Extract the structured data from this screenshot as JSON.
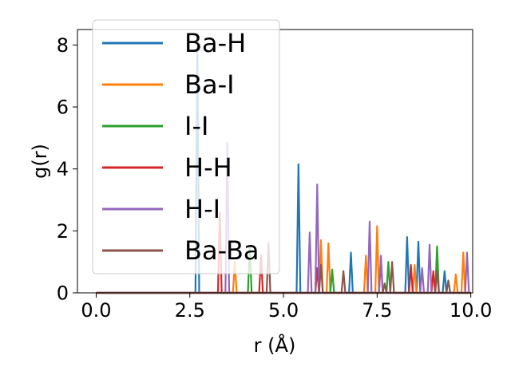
{
  "chart_data": {
    "type": "line",
    "xlabel": "r (Å)",
    "ylabel": "g(r)",
    "xlim": [
      -0.5,
      10.05
    ],
    "ylim": [
      0,
      8.5
    ],
    "xticks": [
      0.0,
      2.5,
      5.0,
      7.5,
      10.0
    ],
    "xtick_labels": [
      "0.0",
      "2.5",
      "5.0",
      "7.5",
      "10.0"
    ],
    "yticks": [
      0,
      2,
      4,
      6,
      8
    ],
    "ytick_labels": [
      "0",
      "2",
      "4",
      "6",
      "8"
    ],
    "grid": false,
    "legend_position": "top-left",
    "series": [
      {
        "name": "Ba-H",
        "color": "#1f77b4",
        "peaks": [
          [
            2.7,
            8.0
          ],
          [
            5.4,
            4.15
          ],
          [
            6.8,
            1.3
          ],
          [
            8.3,
            1.8
          ],
          [
            8.6,
            1.65
          ],
          [
            9.3,
            0.7
          ]
        ]
      },
      {
        "name": "Ba-I",
        "color": "#ff7f0e",
        "peaks": [
          [
            3.7,
            1.0
          ],
          [
            6.0,
            1.7
          ],
          [
            6.2,
            1.6
          ],
          [
            7.2,
            1.2
          ],
          [
            7.5,
            2.15
          ],
          [
            8.5,
            0.9
          ],
          [
            9.6,
            0.6
          ],
          [
            9.8,
            1.3
          ]
        ]
      },
      {
        "name": "I-I",
        "color": "#2ca02c",
        "peaks": [
          [
            4.1,
            1.5
          ],
          [
            6.3,
            0.75
          ],
          [
            7.8,
            1.0
          ],
          [
            9.1,
            1.5
          ]
        ]
      },
      {
        "name": "H-H",
        "color": "#d62728",
        "peaks": [
          [
            3.3,
            2.6
          ],
          [
            4.4,
            1.2
          ],
          [
            5.9,
            0.8
          ],
          [
            7.6,
            1.1
          ],
          [
            8.4,
            0.9
          ],
          [
            9.0,
            0.7
          ]
        ]
      },
      {
        "name": "H-I",
        "color": "#9467bd",
        "peaks": [
          [
            3.5,
            4.85
          ],
          [
            5.7,
            1.95
          ],
          [
            5.9,
            3.5
          ],
          [
            7.3,
            2.3
          ],
          [
            7.6,
            1.2
          ],
          [
            8.7,
            0.8
          ],
          [
            8.9,
            1.55
          ],
          [
            9.9,
            1.3
          ]
        ]
      },
      {
        "name": "Ba-Ba",
        "color": "#8c564b",
        "peaks": [
          [
            4.6,
            1.6
          ],
          [
            6.0,
            0.9
          ],
          [
            6.6,
            0.7
          ],
          [
            7.7,
            0.3
          ],
          [
            7.9,
            1.0
          ],
          [
            9.1,
            0.7
          ],
          [
            9.4,
            0.4
          ]
        ]
      }
    ]
  }
}
